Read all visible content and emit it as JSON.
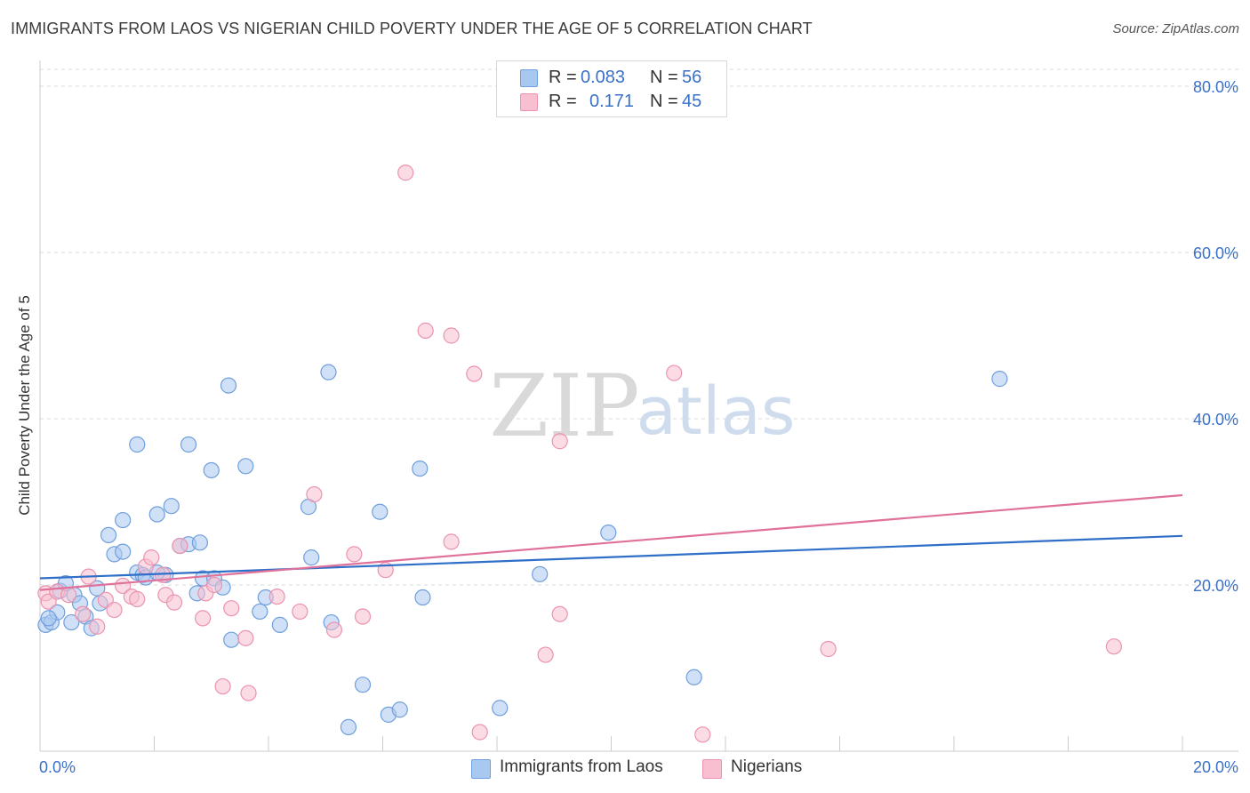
{
  "header": {
    "title": "IMMIGRANTS FROM LAOS VS NIGERIAN CHILD POVERTY UNDER THE AGE OF 5 CORRELATION CHART",
    "source": "Source: ZipAtlas.com"
  },
  "watermark": {
    "zip": "ZIP",
    "atlas": "atlas"
  },
  "legend": {
    "rows": [
      {
        "r_label": "R =",
        "r_value": "0.083",
        "n_label": "N =",
        "n_value": "56"
      },
      {
        "r_label": "R =",
        "r_value": "0.171",
        "n_label": "N =",
        "n_value": "45"
      }
    ]
  },
  "colors": {
    "blue_fill": "#a9c8f0",
    "blue_stroke": "#6f9fdc",
    "blue_line": "#2f6fc8",
    "pink_fill": "#f7bfd0",
    "pink_stroke": "#eb93b0",
    "pink_line": "#e0719a",
    "axis_text": "#3a70c8",
    "grid": "#d9d9d9"
  },
  "chart_data": {
    "type": "scatter",
    "title": "IMMIGRANTS FROM LAOS VS NIGERIAN CHILD POVERTY UNDER THE AGE OF 5 CORRELATION CHART",
    "xlabel": "",
    "ylabel": "Child Poverty Under the Age of 5",
    "xlim": [
      0,
      20
    ],
    "ylim": [
      0,
      80
    ],
    "x_tick_labels": [
      "0.0%",
      "20.0%"
    ],
    "y_tick_labels": [
      "20.0%",
      "40.0%",
      "60.0%",
      "80.0%"
    ],
    "y_ticks": [
      20,
      40,
      60,
      80
    ],
    "grid": true,
    "legend_position": "top-center",
    "series": [
      {
        "name": "Immigrants from Laos",
        "color": "#a9c8f0",
        "points": [
          [
            0.1,
            15.2
          ],
          [
            0.2,
            15.5
          ],
          [
            0.3,
            16.7
          ],
          [
            0.35,
            19.3
          ],
          [
            0.55,
            15.5
          ],
          [
            0.45,
            20.2
          ],
          [
            0.6,
            18.8
          ],
          [
            0.7,
            17.8
          ],
          [
            0.8,
            16.2
          ],
          [
            0.9,
            14.8
          ],
          [
            1.0,
            19.6
          ],
          [
            1.05,
            17.8
          ],
          [
            1.2,
            26.0
          ],
          [
            1.3,
            23.7
          ],
          [
            1.45,
            27.8
          ],
          [
            1.7,
            21.5
          ],
          [
            1.8,
            21.2
          ],
          [
            1.85,
            20.9
          ],
          [
            2.05,
            28.5
          ],
          [
            2.3,
            29.5
          ],
          [
            2.45,
            24.7
          ],
          [
            2.6,
            24.9
          ],
          [
            2.8,
            25.1
          ],
          [
            2.85,
            20.8
          ],
          [
            2.75,
            19.0
          ],
          [
            3.05,
            20.8
          ],
          [
            3.2,
            19.7
          ],
          [
            3.35,
            13.4
          ],
          [
            3.6,
            34.3
          ],
          [
            3.3,
            44.0
          ],
          [
            2.6,
            36.9
          ],
          [
            1.7,
            36.9
          ],
          [
            3.0,
            33.8
          ],
          [
            1.45,
            24.0
          ],
          [
            3.85,
            16.8
          ],
          [
            3.95,
            18.5
          ],
          [
            4.2,
            15.2
          ],
          [
            4.7,
            29.4
          ],
          [
            4.75,
            23.3
          ],
          [
            5.05,
            45.6
          ],
          [
            5.1,
            15.5
          ],
          [
            5.4,
            2.9
          ],
          [
            5.65,
            8.0
          ],
          [
            5.95,
            28.8
          ],
          [
            6.1,
            4.4
          ],
          [
            6.3,
            5.0
          ],
          [
            6.65,
            34.0
          ],
          [
            6.7,
            18.5
          ],
          [
            8.05,
            5.2
          ],
          [
            8.75,
            21.3
          ],
          [
            9.95,
            26.3
          ],
          [
            11.45,
            8.9
          ],
          [
            16.8,
            44.8
          ],
          [
            0.15,
            16.0
          ],
          [
            2.2,
            21.2
          ],
          [
            2.05,
            21.5
          ]
        ]
      },
      {
        "name": "Nigerians",
        "color": "#f7bfd0",
        "points": [
          [
            0.1,
            19.0
          ],
          [
            0.15,
            18.0
          ],
          [
            0.3,
            19.2
          ],
          [
            0.5,
            18.8
          ],
          [
            0.75,
            16.5
          ],
          [
            0.85,
            21.0
          ],
          [
            1.0,
            15.0
          ],
          [
            1.15,
            18.2
          ],
          [
            1.3,
            17.0
          ],
          [
            1.45,
            19.9
          ],
          [
            1.6,
            18.6
          ],
          [
            1.7,
            18.3
          ],
          [
            1.85,
            22.2
          ],
          [
            1.95,
            23.3
          ],
          [
            2.15,
            21.2
          ],
          [
            2.2,
            18.8
          ],
          [
            2.35,
            17.9
          ],
          [
            2.45,
            24.7
          ],
          [
            2.85,
            16.0
          ],
          [
            2.9,
            19.0
          ],
          [
            3.05,
            20.0
          ],
          [
            3.2,
            7.8
          ],
          [
            3.35,
            17.2
          ],
          [
            3.6,
            13.6
          ],
          [
            3.65,
            7.0
          ],
          [
            4.15,
            18.6
          ],
          [
            4.55,
            16.8
          ],
          [
            4.8,
            30.9
          ],
          [
            5.15,
            14.6
          ],
          [
            5.5,
            23.7
          ],
          [
            5.65,
            16.2
          ],
          [
            6.05,
            21.8
          ],
          [
            6.4,
            69.6
          ],
          [
            6.75,
            50.6
          ],
          [
            7.2,
            50.0
          ],
          [
            7.2,
            25.2
          ],
          [
            7.6,
            45.4
          ],
          [
            7.7,
            2.3
          ],
          [
            9.1,
            37.3
          ],
          [
            8.85,
            11.6
          ],
          [
            9.1,
            16.5
          ],
          [
            11.1,
            45.5
          ],
          [
            11.6,
            2.0
          ],
          [
            13.8,
            12.3
          ],
          [
            18.8,
            12.6
          ]
        ]
      }
    ],
    "trendlines": [
      {
        "name": "Immigrants from Laos",
        "x": [
          0,
          20
        ],
        "y": [
          20.8,
          25.9
        ],
        "color": "#2f6fc8"
      },
      {
        "name": "Nigerians",
        "x": [
          0,
          20
        ],
        "y": [
          19.4,
          30.8
        ],
        "color": "#e0719a"
      }
    ]
  }
}
